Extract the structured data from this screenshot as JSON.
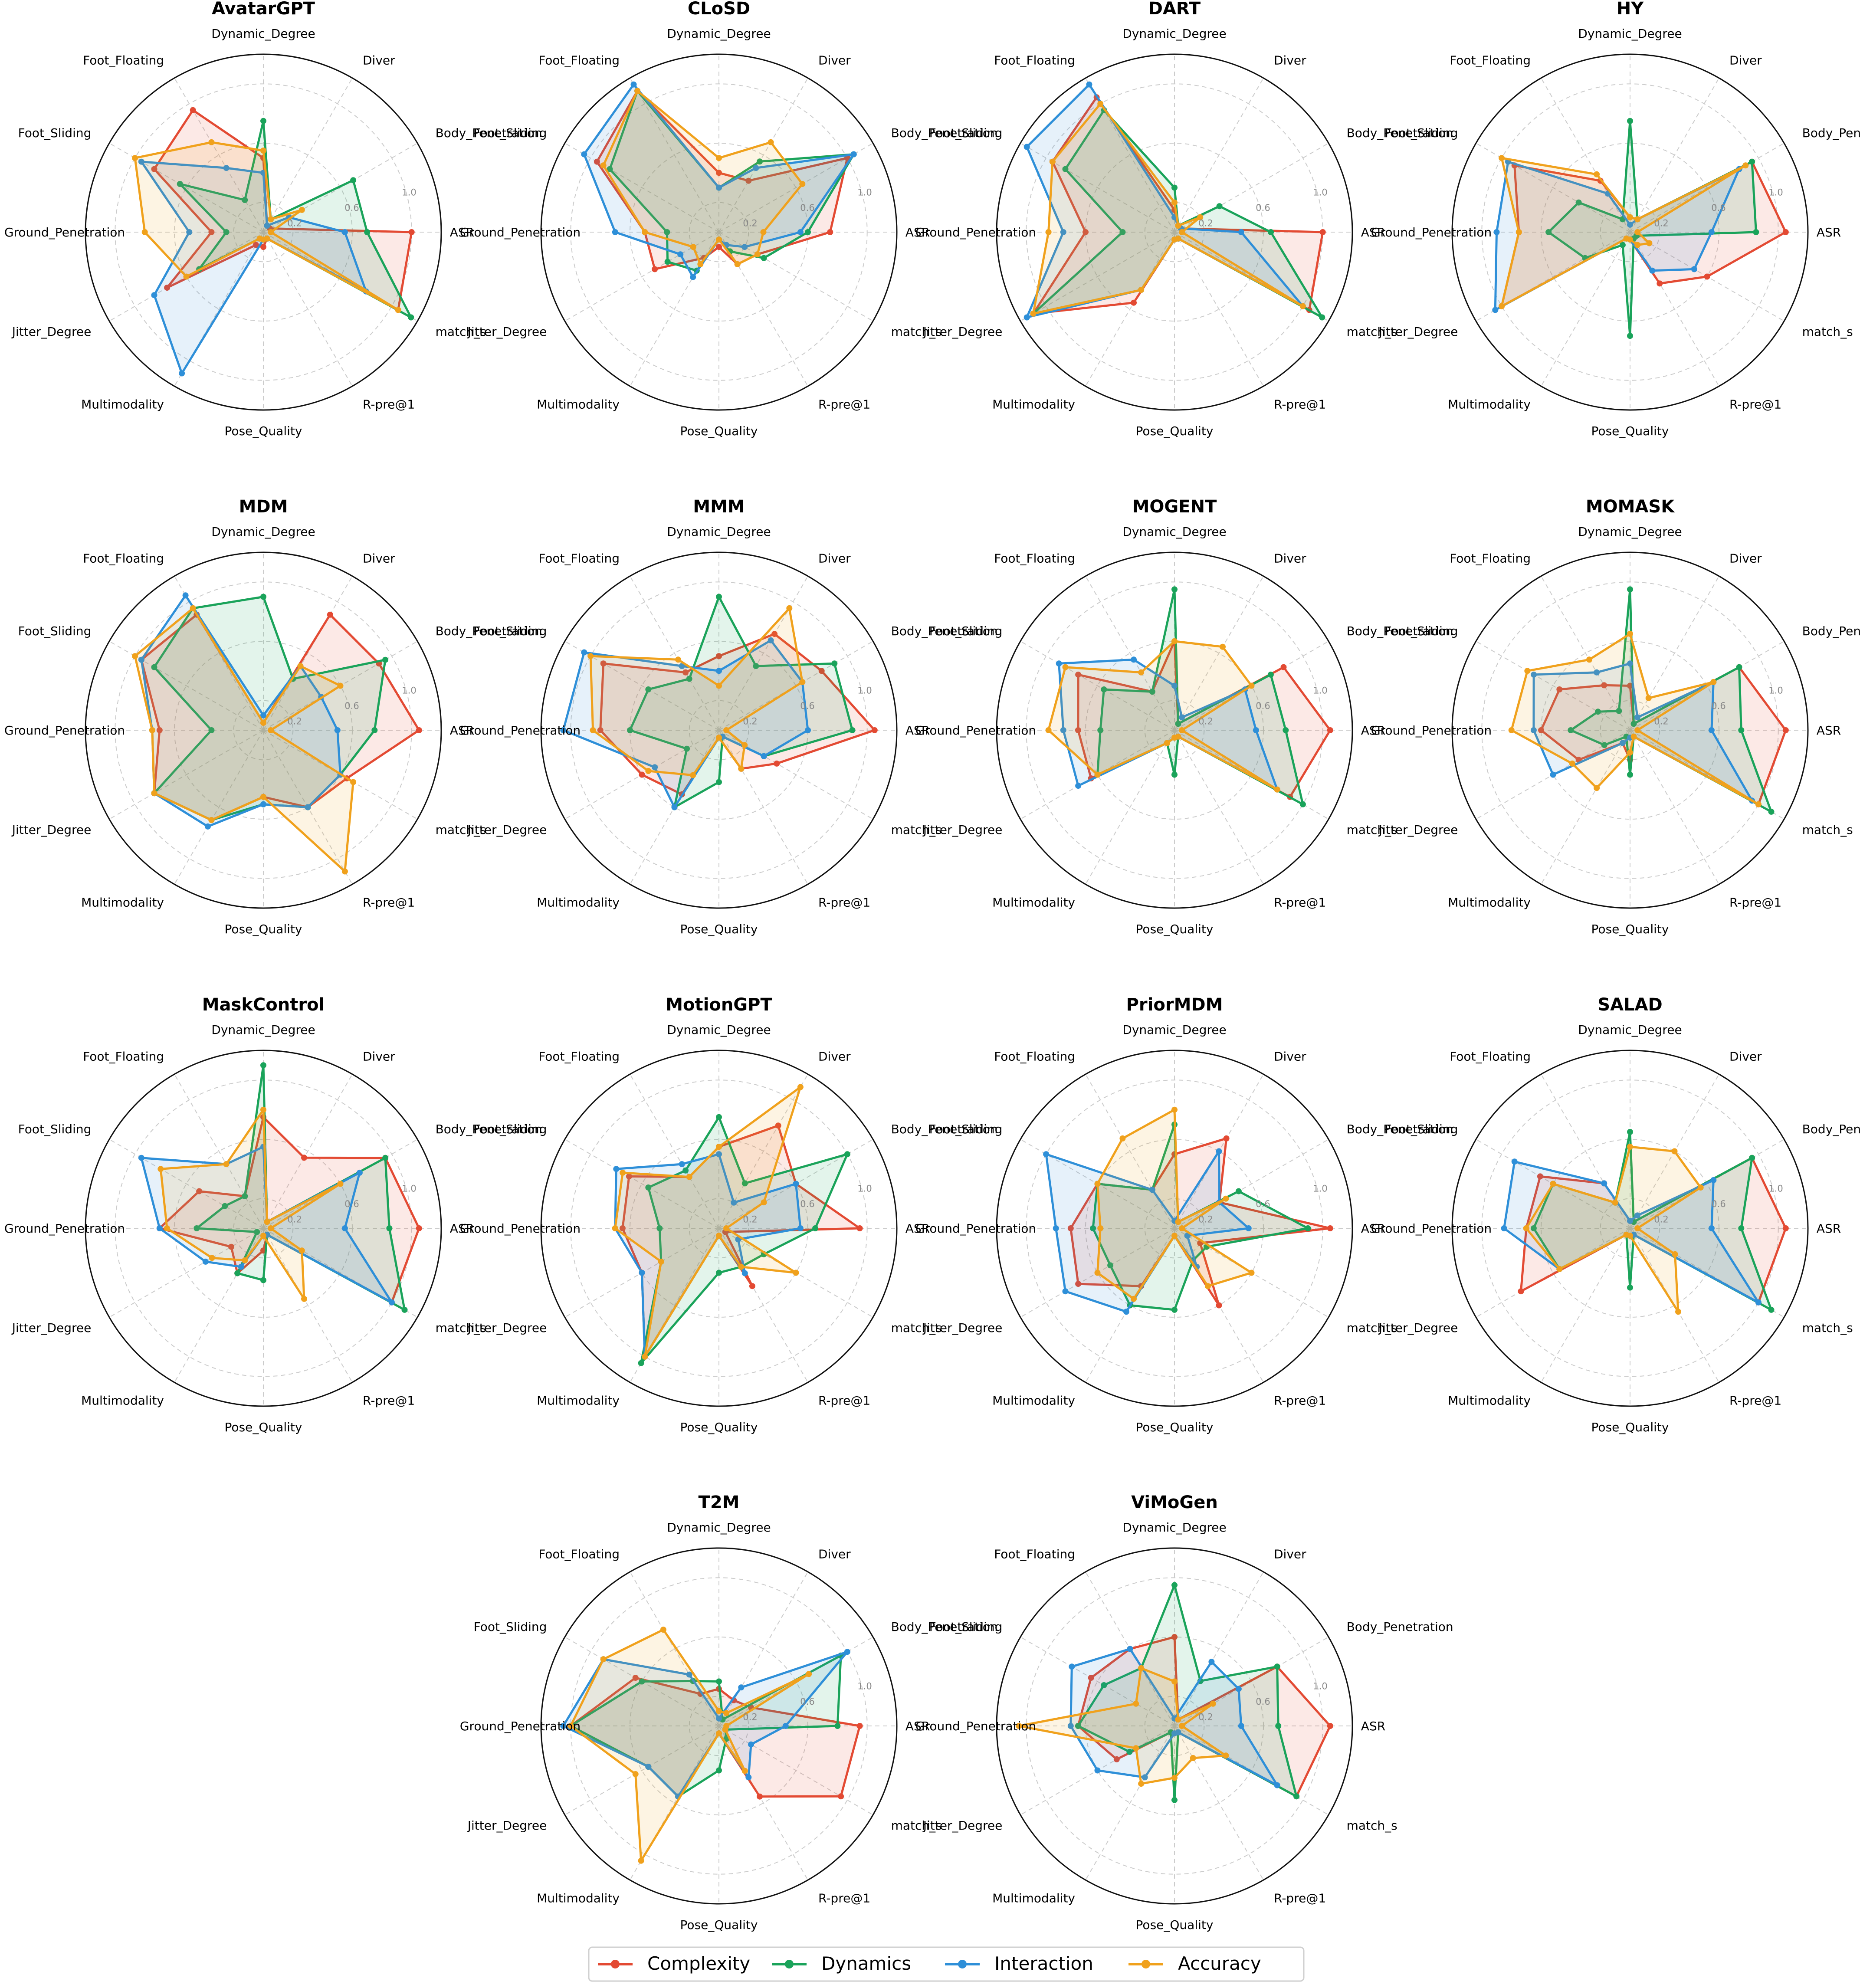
{
  "chart_data": {
    "type": "radar",
    "axes": [
      "ASR",
      "Body_Penetration",
      "Diver",
      "Dynamic_Degree",
      "Foot_Floating",
      "Foot_Sliding",
      "Ground_Penetration",
      "Jitter_Degree",
      "Multimodality",
      "Pose_Quality",
      "R-pre@1",
      "match_s"
    ],
    "rlim": [
      0,
      1.2
    ],
    "radial_ticks": [
      "0.2",
      "0.6",
      "1.0"
    ],
    "radial_tick_values": [
      0.2,
      0.6,
      1.0
    ],
    "grid": true,
    "legend_position": "bottom-center",
    "series": [
      {
        "name": "Complexity",
        "color": "#e34a33"
      },
      {
        "name": "Dynamics",
        "color": "#1aa35a"
      },
      {
        "name": "Interaction",
        "color": "#2e8fd8"
      },
      {
        "name": "Accuracy",
        "color": "#f0a11c"
      }
    ],
    "charts": [
      {
        "title": "AvatarGPT",
        "values": [
          [
            1.0,
            0.05,
            0.05,
            0.5,
            0.95,
            0.85,
            0.35,
            0.75,
            0.1,
            0.1,
            0.05,
            1.05
          ],
          [
            0.7,
            0.7,
            0.1,
            0.75,
            0.25,
            0.65,
            0.25,
            0.5,
            0.05,
            0.05,
            0.05,
            1.15
          ],
          [
            0.55,
            0.2,
            0.05,
            0.4,
            0.5,
            0.95,
            0.5,
            0.85,
            1.1,
            0.05,
            0.05,
            0.8
          ],
          [
            0.05,
            0.3,
            0.1,
            0.55,
            0.7,
            1.0,
            0.8,
            0.6,
            0.05,
            0.05,
            0.05,
            1.05
          ]
        ]
      },
      {
        "title": "CLoSD",
        "values": [
          [
            0.75,
            1.0,
            0.4,
            0.4,
            1.1,
            0.95,
            0.5,
            0.5,
            0.2,
            0.1,
            0.25,
            0.3
          ],
          [
            0.6,
            1.05,
            0.55,
            0.3,
            1.1,
            0.85,
            0.35,
            0.4,
            0.3,
            0.05,
            0.15,
            0.35
          ],
          [
            0.55,
            1.05,
            0.5,
            0.3,
            1.15,
            1.05,
            0.7,
            0.3,
            0.35,
            0.05,
            0.1,
            0.2
          ],
          [
            0.3,
            0.65,
            0.7,
            0.5,
            1.1,
            0.9,
            0.5,
            0.2,
            0.25,
            0.05,
            0.25,
            0.3
          ]
        ]
      },
      {
        "title": "DART",
        "values": [
          [
            1.0,
            0.05,
            0.05,
            0.15,
            1.05,
            0.95,
            0.6,
            1.1,
            0.55,
            0.05,
            0.05,
            1.05
          ],
          [
            0.65,
            0.35,
            0.05,
            0.3,
            0.95,
            0.85,
            0.35,
            1.1,
            0.45,
            0.05,
            0.05,
            1.15
          ],
          [
            0.45,
            0.05,
            0.05,
            0.1,
            1.15,
            1.15,
            0.75,
            1.15,
            0.45,
            0.05,
            0.05,
            1.0
          ],
          [
            0.05,
            0.2,
            0.05,
            0.2,
            1.0,
            0.95,
            0.85,
            1.1,
            0.45,
            0.05,
            0.05,
            1.0
          ]
        ]
      },
      {
        "title": "HY",
        "values": [
          [
            1.05,
            0.95,
            0.1,
            0.1,
            0.4,
            0.9,
            0.75,
            1.0,
            0.05,
            0.05,
            0.4,
            0.6
          ],
          [
            0.85,
            0.95,
            0.1,
            0.75,
            0.1,
            0.4,
            0.55,
            0.35,
            0.1,
            0.7,
            0.05,
            0.05
          ],
          [
            0.55,
            0.85,
            0.1,
            0.05,
            0.3,
            0.95,
            0.9,
            1.05,
            0.05,
            0.05,
            0.3,
            0.5
          ],
          [
            0.05,
            0.9,
            0.1,
            0.1,
            0.45,
            1.0,
            0.75,
            1.0,
            0.05,
            0.05,
            0.1,
            0.15
          ]
        ]
      },
      {
        "title": "MDM",
        "values": [
          [
            1.05,
            0.9,
            0.9,
            0.05,
            0.9,
            0.95,
            0.7,
            0.85,
            0.7,
            0.45,
            0.6,
            0.65
          ],
          [
            0.75,
            0.95,
            0.4,
            0.9,
            0.95,
            0.85,
            0.35,
            0.85,
            0.7,
            0.5,
            0.6,
            0.6
          ],
          [
            0.5,
            0.45,
            0.5,
            0.1,
            1.05,
            0.95,
            0.75,
            0.85,
            0.75,
            0.5,
            0.6,
            0.6
          ],
          [
            0.05,
            0.6,
            0.5,
            0.05,
            0.95,
            1.0,
            0.75,
            0.85,
            0.7,
            0.45,
            1.1,
            0.7
          ]
        ]
      },
      {
        "title": "MMM",
        "values": [
          [
            1.05,
            0.8,
            0.75,
            0.5,
            0.45,
            0.9,
            0.8,
            0.6,
            0.5,
            0.05,
            0.3,
            0.45
          ],
          [
            0.9,
            0.9,
            0.5,
            0.9,
            0.4,
            0.55,
            0.6,
            0.25,
            0.6,
            0.35,
            0.05,
            0.35
          ],
          [
            0.6,
            0.65,
            0.7,
            0.4,
            0.5,
            1.05,
            1.05,
            0.5,
            0.6,
            0.05,
            0.05,
            0.35
          ],
          [
            0.05,
            0.65,
            0.95,
            0.3,
            0.55,
            1.0,
            0.85,
            0.55,
            0.35,
            0.05,
            0.3,
            0.2
          ]
        ]
      },
      {
        "title": "MOGENT",
        "values": [
          [
            1.05,
            0.85,
            0.05,
            0.6,
            0.3,
            0.75,
            0.65,
            0.65,
            0.1,
            0.05,
            0.05,
            0.9
          ],
          [
            0.75,
            0.75,
            0.05,
            0.95,
            0.3,
            0.55,
            0.5,
            0.6,
            0.1,
            0.3,
            0.05,
            1.0
          ],
          [
            0.55,
            0.55,
            0.1,
            0.3,
            0.55,
            0.9,
            0.75,
            0.75,
            0.1,
            0.05,
            0.05,
            0.8
          ],
          [
            0.05,
            0.6,
            0.65,
            0.6,
            0.45,
            0.85,
            0.85,
            0.6,
            0.1,
            0.05,
            0.05,
            0.8
          ]
        ]
      },
      {
        "title": "MOMASK",
        "values": [
          [
            1.05,
            0.85,
            0.05,
            0.3,
            0.35,
            0.55,
            0.6,
            0.4,
            0.1,
            0.2,
            0.05,
            1.0
          ],
          [
            0.75,
            0.85,
            0.05,
            0.95,
            0.15,
            0.25,
            0.4,
            0.2,
            0.05,
            0.3,
            0.05,
            1.1
          ],
          [
            0.55,
            0.65,
            0.1,
            0.45,
            0.45,
            0.75,
            0.65,
            0.6,
            0.1,
            0.05,
            0.05,
            0.95
          ],
          [
            0.05,
            0.65,
            0.25,
            0.65,
            0.55,
            0.8,
            0.8,
            0.45,
            0.45,
            0.15,
            0.05,
            1.0
          ]
        ]
      },
      {
        "title": "MaskControl",
        "values": [
          [
            1.05,
            0.95,
            0.55,
            0.75,
            0.25,
            0.5,
            0.7,
            0.25,
            0.35,
            0.15,
            0.05,
            1.0
          ],
          [
            0.85,
            0.95,
            0.05,
            1.1,
            0.25,
            0.3,
            0.45,
            0.05,
            0.35,
            0.35,
            0.05,
            1.1
          ],
          [
            0.55,
            0.75,
            0.05,
            0.55,
            0.5,
            0.95,
            0.7,
            0.45,
            0.3,
            0.05,
            0.05,
            1.0
          ],
          [
            0.05,
            0.6,
            0.05,
            0.8,
            0.5,
            0.8,
            0.65,
            0.4,
            0.25,
            0.05,
            0.55,
            0.3
          ]
        ]
      },
      {
        "title": "MotionGPT",
        "values": [
          [
            0.95,
            0.6,
            0.8,
            0.55,
            0.4,
            0.7,
            0.65,
            0.6,
            1.0,
            0.05,
            0.45,
            0.05
          ],
          [
            0.65,
            1.0,
            0.35,
            0.75,
            0.45,
            0.55,
            0.4,
            0.45,
            1.05,
            0.3,
            0.3,
            0.35
          ],
          [
            0.55,
            0.6,
            0.2,
            0.5,
            0.5,
            0.8,
            0.7,
            0.6,
            1.0,
            0.05,
            0.35,
            0.15
          ],
          [
            0.05,
            0.35,
            1.1,
            0.55,
            0.4,
            0.75,
            0.7,
            0.45,
            1.0,
            0.05,
            0.3,
            0.6
          ]
        ]
      },
      {
        "title": "PriorMDM",
        "values": [
          [
            1.05,
            0.35,
            0.7,
            0.5,
            0.3,
            0.6,
            0.7,
            0.75,
            0.45,
            0.05,
            0.6,
            0.2
          ],
          [
            0.9,
            0.5,
            0.05,
            0.7,
            0.3,
            0.6,
            0.55,
            0.5,
            0.6,
            0.55,
            0.25,
            0.25
          ],
          [
            0.5,
            0.35,
            0.6,
            0.05,
            0.3,
            1.0,
            0.8,
            0.85,
            0.65,
            0.05,
            0.3,
            0.1
          ],
          [
            0.05,
            0.4,
            0.05,
            0.8,
            0.7,
            0.6,
            0.5,
            0.6,
            0.55,
            0.05,
            0.45,
            0.6
          ]
        ]
      },
      {
        "title": "SALAD",
        "values": [
          [
            1.05,
            0.95,
            0.05,
            0.05,
            0.35,
            0.7,
            0.7,
            0.85,
            0.05,
            0.05,
            0.05,
            1.0
          ],
          [
            0.75,
            0.95,
            0.05,
            0.65,
            0.2,
            0.6,
            0.65,
            0.55,
            0.05,
            0.4,
            0.05,
            1.1
          ],
          [
            0.55,
            0.65,
            0.1,
            0.05,
            0.35,
            0.9,
            0.85,
            0.55,
            0.05,
            0.05,
            0.05,
            1.0
          ],
          [
            0.05,
            0.55,
            0.6,
            0.55,
            0.2,
            0.6,
            0.7,
            0.55,
            0.05,
            0.05,
            0.65,
            0.35
          ]
        ]
      },
      {
        "title": "T2M",
        "values": [
          [
            0.95,
            0.25,
            0.2,
            0.25,
            0.25,
            0.65,
            1.0,
            0.55,
            0.55,
            0.05,
            0.55,
            0.95
          ],
          [
            0.8,
            0.95,
            0.05,
            0.3,
            0.35,
            0.6,
            1.0,
            0.55,
            0.55,
            0.3,
            0.1,
            0.05
          ],
          [
            0.45,
            1.0,
            0.3,
            0.05,
            0.4,
            0.9,
            1.05,
            0.55,
            0.55,
            0.05,
            0.4,
            0.25
          ],
          [
            0.05,
            0.7,
            0.1,
            0.1,
            0.75,
            0.9,
            1.0,
            0.65,
            1.05,
            0.05,
            0.35,
            0.05
          ]
        ]
      },
      {
        "title": "ViMoGen",
        "values": [
          [
            1.05,
            0.8,
            0.05,
            0.6,
            0.6,
            0.65,
            0.65,
            0.45,
            0.05,
            0.05,
            0.05,
            0.95
          ],
          [
            0.7,
            0.8,
            0.35,
            0.95,
            0.45,
            0.55,
            0.65,
            0.35,
            0.05,
            0.5,
            0.05,
            0.95
          ],
          [
            0.45,
            0.5,
            0.5,
            0.05,
            0.6,
            0.8,
            0.7,
            0.6,
            0.4,
            0.05,
            0.05,
            0.8
          ],
          [
            0.05,
            0.3,
            0.05,
            0.3,
            0.45,
            0.3,
            1.05,
            0.3,
            0.45,
            0.35,
            0.25,
            0.4
          ]
        ]
      }
    ]
  }
}
